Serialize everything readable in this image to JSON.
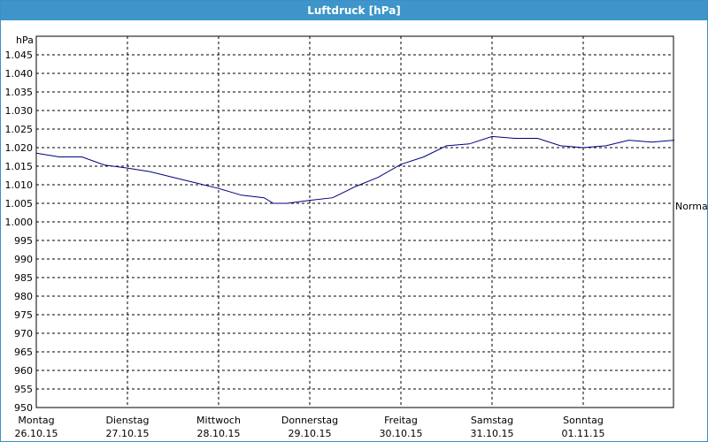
{
  "window": {
    "title": "Luftdruck [hPa]"
  },
  "colors": {
    "titlebar": "#3d95c9",
    "series": "#000080",
    "grid": "#000000",
    "background": "#ffffff"
  },
  "chart_data": {
    "type": "line",
    "title": "Luftdruck [hPa]",
    "ylabel": "hPa",
    "ylim": [
      950,
      1050
    ],
    "grid": true,
    "y_ticks": [
      "950",
      "955",
      "960",
      "965",
      "970",
      "975",
      "980",
      "985",
      "990",
      "995",
      "1.000",
      "1.005",
      "1.010",
      "1.015",
      "1.020",
      "1.025",
      "1.030",
      "1.035",
      "1.040",
      "1.045"
    ],
    "x_ticks": [
      {
        "day": "Montag",
        "date": "26.10.15"
      },
      {
        "day": "Dienstag",
        "date": "27.10.15"
      },
      {
        "day": "Mittwoch",
        "date": "28.10.15"
      },
      {
        "day": "Donnerstag",
        "date": "29.10.15"
      },
      {
        "day": "Freitag",
        "date": "30.10.15"
      },
      {
        "day": "Samstag",
        "date": "31.10.15"
      },
      {
        "day": "Sonntag",
        "date": "01.11.15"
      }
    ],
    "reference_label": "Normal",
    "reference_value": 1005,
    "series": [
      {
        "x": [
          0,
          0.25,
          0.5,
          0.75,
          1.0,
          1.25,
          1.5,
          1.75,
          2.0,
          2.25,
          2.5,
          2.6,
          2.75,
          3.0,
          3.25,
          3.5,
          3.75,
          4.0,
          4.25,
          4.5,
          4.75,
          5.0,
          5.25,
          5.5,
          5.75,
          6.0,
          6.25,
          6.5,
          6.75,
          7.0
        ],
        "values": [
          1018.5,
          1017.5,
          1017.5,
          1015.3,
          1014.5,
          1013.5,
          1012.0,
          1010.5,
          1009.0,
          1007.2,
          1006.5,
          1005.0,
          1005.0,
          1005.8,
          1006.5,
          1009.5,
          1012.0,
          1015.5,
          1017.5,
          1020.5,
          1021.0,
          1023.0,
          1022.5,
          1022.5,
          1020.5,
          1020.0,
          1020.5,
          1022.0,
          1021.5,
          1022.0
        ]
      }
    ]
  }
}
